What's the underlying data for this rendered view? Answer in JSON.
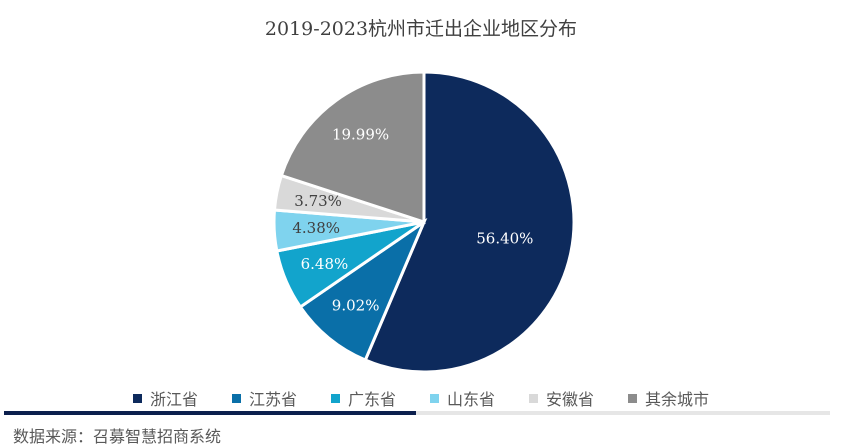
{
  "chart_data": {
    "type": "pie",
    "title": "2019-2023杭州市迁出企业地区分布",
    "categories": [
      "浙江省",
      "江苏省",
      "广东省",
      "山东省",
      "安徽省",
      "其余城市"
    ],
    "values": [
      56.4,
      9.02,
      6.48,
      4.38,
      3.73,
      19.99
    ],
    "labels": [
      "56.40%",
      "9.02%",
      "6.48%",
      "4.38%",
      "3.73%",
      "19.99%"
    ],
    "colors": [
      "#0d2a5c",
      "#0a6fa8",
      "#12a4cc",
      "#7fd3ee",
      "#d9d9d9",
      "#8c8c8c"
    ],
    "label_colors": [
      "#ffffff",
      "#ffffff",
      "#ffffff",
      "#404040",
      "#404040",
      "#ffffff"
    ],
    "legend_position": "bottom"
  },
  "source": "数据来源：召募智慧招商系统"
}
